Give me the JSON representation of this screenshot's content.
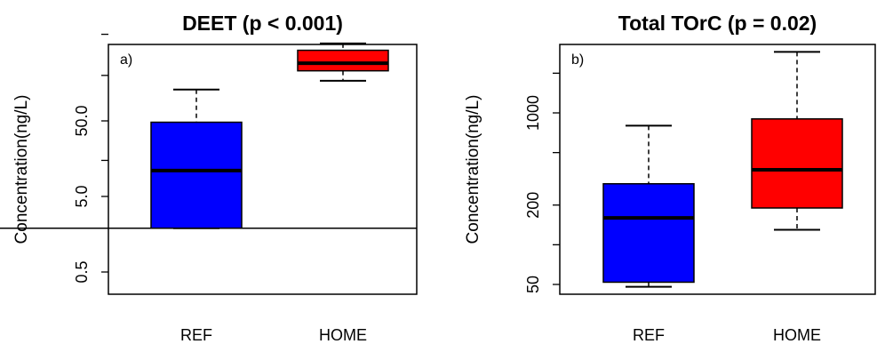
{
  "chart_data": [
    {
      "type": "box",
      "title": "DEET (p < 0.001)",
      "panel_label": "a)",
      "ylabel": "Concentration(ng/L)",
      "y_scale": "log",
      "y_ticks": [
        "0.5",
        "5.0",
        "50.0"
      ],
      "categories": [
        "REF",
        "HOME"
      ],
      "reference_line": 1.9,
      "boxes": [
        {
          "category": "REF",
          "whisker_low": 1.9,
          "q1": 1.9,
          "median": 11,
          "q3": 48,
          "whisker_high": 130,
          "color": "#0000ff"
        },
        {
          "category": "HOME",
          "whisker_low": 170,
          "q1": 230,
          "median": 290,
          "q3": 430,
          "whisker_high": 530,
          "color": "#ff0000"
        }
      ]
    },
    {
      "type": "box",
      "title": "Total TOrC (p = 0.02)",
      "panel_label": "b)",
      "ylabel": "Concentration(ng/L)",
      "y_scale": "log",
      "y_ticks": [
        "50",
        "200",
        "1000"
      ],
      "categories": [
        "REF",
        "HOME"
      ],
      "boxes": [
        {
          "category": "REF",
          "whisker_low": 48,
          "q1": 52,
          "median": 160,
          "q3": 290,
          "whisker_high": 800,
          "color": "#0000ff"
        },
        {
          "category": "HOME",
          "whisker_low": 130,
          "q1": 190,
          "median": 370,
          "q3": 900,
          "whisker_high": 2900,
          "color": "#ff0000"
        }
      ]
    }
  ]
}
